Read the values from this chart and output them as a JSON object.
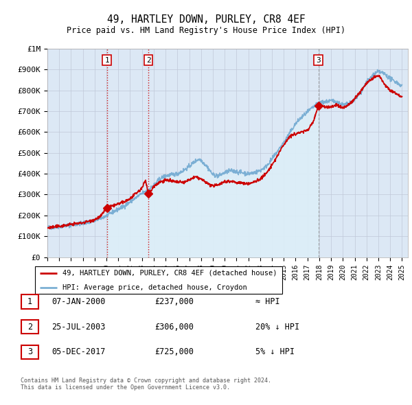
{
  "title": "49, HARTLEY DOWN, PURLEY, CR8 4EF",
  "subtitle": "Price paid vs. HM Land Registry's House Price Index (HPI)",
  "hpi_label": "HPI: Average price, detached house, Croydon",
  "property_label": "49, HARTLEY DOWN, PURLEY, CR8 4EF (detached house)",
  "footnote1": "Contains HM Land Registry data © Crown copyright and database right 2024.",
  "footnote2": "This data is licensed under the Open Government Licence v3.0.",
  "ylim": [
    0,
    1000000
  ],
  "yticks": [
    0,
    100000,
    200000,
    300000,
    400000,
    500000,
    600000,
    700000,
    800000,
    900000,
    1000000
  ],
  "ytick_labels": [
    "£0",
    "£100K",
    "£200K",
    "£300K",
    "£400K",
    "£500K",
    "£600K",
    "£700K",
    "£800K",
    "£900K",
    "£1M"
  ],
  "hpi_color": "#7bafd4",
  "hpi_fill_color": "#c8dff0",
  "property_color": "#cc0000",
  "sale_color": "#cc0000",
  "vline_color_red": "#cc0000",
  "vline_color_grey": "#888888",
  "bg_color": "#dce8f5",
  "sale_events": [
    {
      "year": 2000.03,
      "price": 237000,
      "label": "1",
      "vline_style": "red"
    },
    {
      "year": 2003.56,
      "price": 306000,
      "label": "2",
      "vline_style": "red"
    },
    {
      "year": 2017.92,
      "price": 725000,
      "label": "3",
      "vline_style": "grey"
    }
  ],
  "table_rows": [
    {
      "num": "1",
      "date": "07-JAN-2000",
      "price": "£237,000",
      "note": "≈ HPI"
    },
    {
      "num": "2",
      "date": "25-JUL-2003",
      "price": "£306,000",
      "note": "20% ↓ HPI"
    },
    {
      "num": "3",
      "date": "05-DEC-2017",
      "price": "£725,000",
      "note": "5% ↓ HPI"
    }
  ]
}
